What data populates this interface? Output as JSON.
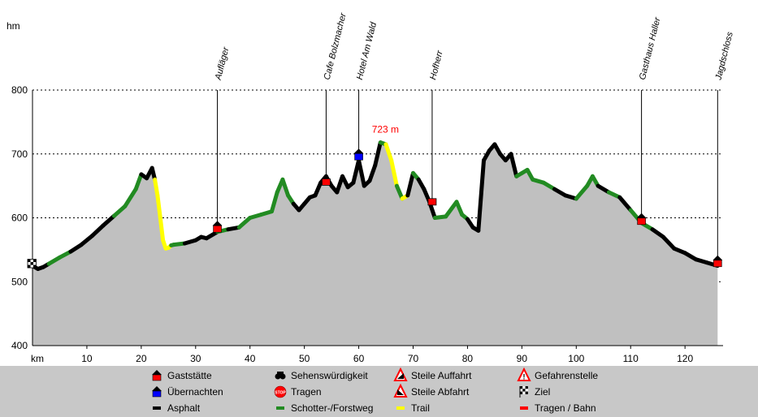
{
  "chart_data": {
    "type": "area",
    "xlabel": "km",
    "ylabel": "hm",
    "xlim": [
      0,
      127
    ],
    "ylim": [
      400,
      800
    ],
    "xticks": [
      10,
      20,
      30,
      40,
      50,
      60,
      70,
      80,
      90,
      100,
      110,
      120
    ],
    "yticks": [
      400,
      500,
      600,
      700,
      800
    ],
    "grid": "horizontal dotted",
    "fill_color": "#c0c0c0",
    "profile": {
      "x": [
        0,
        1,
        2,
        3,
        5,
        7,
        9,
        11,
        13,
        15,
        17,
        19,
        20,
        21,
        22,
        22.5,
        23,
        23.5,
        24,
        24.5,
        25,
        25.5,
        26,
        28,
        30,
        31,
        32,
        34,
        36,
        38,
        40,
        42,
        44,
        45,
        46,
        47,
        48,
        49,
        50,
        51,
        52,
        53,
        54,
        55,
        56,
        57,
        58,
        59,
        60,
        61,
        62,
        63,
        64,
        65,
        66,
        67,
        68,
        69,
        70,
        71,
        72,
        73,
        74,
        76,
        78,
        79,
        80,
        81,
        82,
        83,
        84,
        85,
        86,
        87,
        88,
        89,
        90,
        91,
        92,
        94,
        96,
        98,
        100,
        102,
        103,
        104,
        106,
        108,
        110,
        112,
        114,
        116,
        118,
        120,
        122,
        124,
        126
      ],
      "y": [
        525,
        520,
        523,
        528,
        538,
        547,
        558,
        572,
        588,
        603,
        618,
        645,
        668,
        662,
        678,
        660,
        635,
        600,
        565,
        552,
        553,
        557,
        558,
        560,
        565,
        570,
        568,
        578,
        582,
        585,
        600,
        605,
        610,
        640,
        660,
        635,
        622,
        612,
        622,
        632,
        635,
        655,
        665,
        650,
        640,
        665,
        648,
        655,
        690,
        650,
        658,
        682,
        718,
        715,
        690,
        650,
        630,
        635,
        670,
        660,
        645,
        625,
        600,
        602,
        625,
        605,
        598,
        585,
        580,
        690,
        705,
        715,
        700,
        690,
        700,
        665,
        670,
        675,
        660,
        655,
        645,
        635,
        630,
        650,
        665,
        650,
        640,
        632,
        612,
        592,
        582,
        570,
        552,
        545,
        535,
        530,
        525
      ],
      "surface": [
        "Asphalt",
        "Asphalt",
        "Asphalt",
        "Schotter-/Forstweg",
        "Schotter-/Forstweg",
        "Asphalt",
        "Asphalt",
        "Asphalt",
        "Asphalt",
        "Schotter-/Forstweg",
        "Schotter-/Forstweg",
        "Schotter-/Forstweg",
        "Asphalt",
        "Asphalt",
        "Asphalt",
        "Trail",
        "Trail",
        "Trail",
        "Trail",
        "Trail",
        "Trail",
        "Schotter-/Forstweg",
        "Schotter-/Forstweg",
        "Asphalt",
        "Asphalt",
        "Asphalt",
        "Asphalt",
        "Schotter-/Forstweg",
        "Asphalt",
        "Schotter-/Forstweg",
        "Schotter-/Forstweg",
        "Schotter-/Forstweg",
        "Schotter-/Forstweg",
        "Schotter-/Forstweg",
        "Schotter-/Forstweg",
        "Schotter-/Forstweg",
        "Asphalt",
        "Asphalt",
        "Asphalt",
        "Asphalt",
        "Asphalt",
        "Asphalt",
        "Asphalt",
        "Asphalt",
        "Asphalt",
        "Asphalt",
        "Asphalt",
        "Asphalt",
        "Asphalt",
        "Asphalt",
        "Asphalt",
        "Asphalt",
        "Schotter-/Forstweg",
        "Trail",
        "Trail",
        "Schotter-/Forstweg",
        "Trail",
        "Asphalt",
        "Schotter-/Forstweg",
        "Asphalt",
        "Asphalt",
        "Asphalt",
        "Schotter-/Forstweg",
        "Schotter-/Forstweg",
        "Schotter-/Forstweg",
        "Schotter-/Forstweg",
        "Asphalt",
        "Asphalt",
        "Asphalt",
        "Asphalt",
        "Asphalt",
        "Asphalt",
        "Asphalt",
        "Asphalt",
        "Asphalt",
        "Schotter-/Forstweg",
        "Schotter-/Forstweg",
        "Schotter-/Forstweg",
        "Schotter-/Forstweg",
        "Schotter-/Forstweg",
        "Asphalt",
        "Asphalt",
        "Schotter-/Forstweg",
        "Schotter-/Forstweg",
        "Schotter-/Forstweg",
        "Asphalt",
        "Schotter-/Forstweg",
        "Asphalt",
        "Schotter-/Forstweg",
        "Schotter-/Forstweg",
        "Asphalt",
        "Asphalt",
        "Asphalt",
        "Asphalt",
        "Asphalt",
        "Asphalt"
      ]
    },
    "surface_colors": {
      "Asphalt": "#000000",
      "Schotter-/Forstweg": "#228b22",
      "Trail": "#ffff00"
    },
    "peak_label": {
      "text": "723 m",
      "x": 65.5,
      "y": 723,
      "color": "#ff0000"
    },
    "start_marker": {
      "type": "Ziel",
      "x": 0,
      "y": 525
    },
    "points_of_interest": [
      {
        "name": "Aufläger",
        "x": 34,
        "y": 580,
        "type": "Gaststätte"
      },
      {
        "name": "Cafe Bolzmacher",
        "x": 54,
        "y": 656,
        "type": "Tragen / Bahn"
      },
      {
        "name": "Hotel Am Wald",
        "x": 60,
        "y": 693,
        "type": "Übernachten"
      },
      {
        "name": "Hofherr",
        "x": 73.5,
        "y": 625,
        "type": "Tragen / Bahn"
      },
      {
        "name": "Gasthaus Haller",
        "x": 112,
        "y": 592,
        "type": "Gaststätte"
      },
      {
        "name": "Jagdschloss",
        "x": 126,
        "y": 526,
        "type": "Gaststätte"
      }
    ],
    "legend": {
      "position": "bottom",
      "items": [
        {
          "label": "Gaststätte",
          "symbol": "gaststaette-icon",
          "color": "#ff0000"
        },
        {
          "label": "Sehenswürdigkeit",
          "symbol": "binoculars-icon",
          "color": "#000000"
        },
        {
          "label": "Steile Auffahrt",
          "symbol": "steep-up-icon",
          "color": "#ff0000"
        },
        {
          "label": "Gefahrenstelle",
          "symbol": "danger-icon",
          "color": "#ff0000"
        },
        {
          "label": "Übernachten",
          "symbol": "uebernachten-icon",
          "color": "#0000ff"
        },
        {
          "label": "Tragen",
          "symbol": "stop-icon",
          "color": "#ff0000"
        },
        {
          "label": "Steile Abfahrt",
          "symbol": "steep-down-icon",
          "color": "#ff0000"
        },
        {
          "label": "Ziel",
          "symbol": "checkered-flag-icon",
          "color": "#000000"
        },
        {
          "label": "Asphalt",
          "symbol": "asphalt-line-icon",
          "color": "#000000"
        },
        {
          "label": "Schotter-/Forstweg",
          "symbol": "gravel-line-icon",
          "color": "#228b22"
        },
        {
          "label": "Trail",
          "symbol": "trail-line-icon",
          "color": "#ffff00"
        },
        {
          "label": "Tragen / Bahn",
          "symbol": "carry-rail-line-icon",
          "color": "#ff0000"
        }
      ]
    }
  }
}
